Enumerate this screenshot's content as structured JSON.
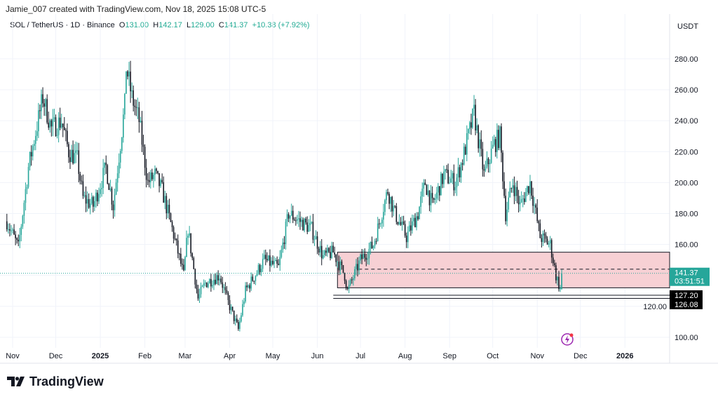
{
  "credit": "Jamie_007 created with TradingView.com, Nov 18, 2025 15:08 UTC-5",
  "legend": {
    "symbol": "SOL / TetherUS · 1D · Binance",
    "o_label": "O",
    "o": "131.00",
    "h_label": "H",
    "h": "142.17",
    "l_label": "L",
    "l": "129.00",
    "c_label": "C",
    "c": "141.37",
    "change": "+10.38 (+7.92%)"
  },
  "logo": "TradingView",
  "colors": {
    "up": "#26a69a",
    "down": "#131722",
    "zone": "#f7d0d4",
    "price_label": "#26a69a"
  },
  "chart_data": {
    "type": "candlestick",
    "currency_label": "USDT",
    "ylim": [
      95,
      290
    ],
    "y_ticks": [
      "100.00",
      "120.00",
      "140.00",
      "160.00",
      "180.00",
      "200.00",
      "220.00",
      "240.00",
      "260.00",
      "280.00"
    ],
    "x_ticks": [
      {
        "label": "Nov",
        "date": "2024-11-01"
      },
      {
        "label": "Dec",
        "date": "2024-12-01"
      },
      {
        "label": "2025",
        "date": "2025-01-01",
        "bold": true
      },
      {
        "label": "Feb",
        "date": "2025-02-01"
      },
      {
        "label": "Mar",
        "date": "2025-03-01"
      },
      {
        "label": "Apr",
        "date": "2025-04-01"
      },
      {
        "label": "May",
        "date": "2025-05-01"
      },
      {
        "label": "Jun",
        "date": "2025-06-01"
      },
      {
        "label": "Jul",
        "date": "2025-07-01"
      },
      {
        "label": "Aug",
        "date": "2025-08-01"
      },
      {
        "label": "Sep",
        "date": "2025-09-01"
      },
      {
        "label": "Oct",
        "date": "2025-10-01"
      },
      {
        "label": "Nov",
        "date": "2025-11-01"
      },
      {
        "label": "Dec",
        "date": "2025-12-01"
      },
      {
        "label": "2026",
        "date": "2026-01-01",
        "bold": true
      }
    ],
    "price_path": [
      [
        "2024-10-28",
        175
      ],
      [
        "2024-11-05",
        158
      ],
      [
        "2024-11-12",
        210
      ],
      [
        "2024-11-22",
        255
      ],
      [
        "2024-11-28",
        235
      ],
      [
        "2024-12-05",
        240
      ],
      [
        "2024-12-10",
        220
      ],
      [
        "2024-12-16",
        215
      ],
      [
        "2024-12-20",
        190
      ],
      [
        "2024-12-27",
        185
      ],
      [
        "2025-01-05",
        210
      ],
      [
        "2025-01-10",
        185
      ],
      [
        "2025-01-18",
        250
      ],
      [
        "2025-01-19",
        275
      ],
      [
        "2025-01-23",
        255
      ],
      [
        "2025-01-28",
        240
      ],
      [
        "2025-02-03",
        200
      ],
      [
        "2025-02-08",
        205
      ],
      [
        "2025-02-13",
        195
      ],
      [
        "2025-02-20",
        170
      ],
      [
        "2025-02-28",
        140
      ],
      [
        "2025-03-03",
        170
      ],
      [
        "2025-03-10",
        125
      ],
      [
        "2025-03-15",
        135
      ],
      [
        "2025-03-25",
        140
      ],
      [
        "2025-03-30",
        125
      ],
      [
        "2025-04-07",
        105
      ],
      [
        "2025-04-12",
        130
      ],
      [
        "2025-04-25",
        150
      ],
      [
        "2025-05-05",
        145
      ],
      [
        "2025-05-12",
        180
      ],
      [
        "2025-05-20",
        175
      ],
      [
        "2025-05-28",
        170
      ],
      [
        "2025-06-05",
        152
      ],
      [
        "2025-06-12",
        155
      ],
      [
        "2025-06-20",
        140
      ],
      [
        "2025-06-22",
        130
      ],
      [
        "2025-07-01",
        150
      ],
      [
        "2025-07-10",
        160
      ],
      [
        "2025-07-20",
        195
      ],
      [
        "2025-07-25",
        180
      ],
      [
        "2025-08-02",
        165
      ],
      [
        "2025-08-10",
        180
      ],
      [
        "2025-08-15",
        200
      ],
      [
        "2025-08-20",
        185
      ],
      [
        "2025-08-28",
        205
      ],
      [
        "2025-09-05",
        200
      ],
      [
        "2025-09-10",
        215
      ],
      [
        "2025-09-18",
        245
      ],
      [
        "2025-09-25",
        205
      ],
      [
        "2025-10-02",
        225
      ],
      [
        "2025-10-06",
        230
      ],
      [
        "2025-10-10",
        180
      ],
      [
        "2025-10-15",
        200
      ],
      [
        "2025-10-20",
        185
      ],
      [
        "2025-10-27",
        200
      ],
      [
        "2025-11-03",
        165
      ],
      [
        "2025-11-10",
        160
      ],
      [
        "2025-11-14",
        140
      ],
      [
        "2025-11-17",
        131
      ],
      [
        "2025-11-18",
        141.37
      ]
    ],
    "zone": {
      "from": "2025-06-15",
      "top": 155,
      "bottom": 132,
      "mid": 144
    },
    "support_lines": [
      127.2,
      126.08
    ],
    "last_price": "141.37",
    "countdown": "03:51:51",
    "support_labels": [
      "127.20",
      "126.08"
    ]
  }
}
